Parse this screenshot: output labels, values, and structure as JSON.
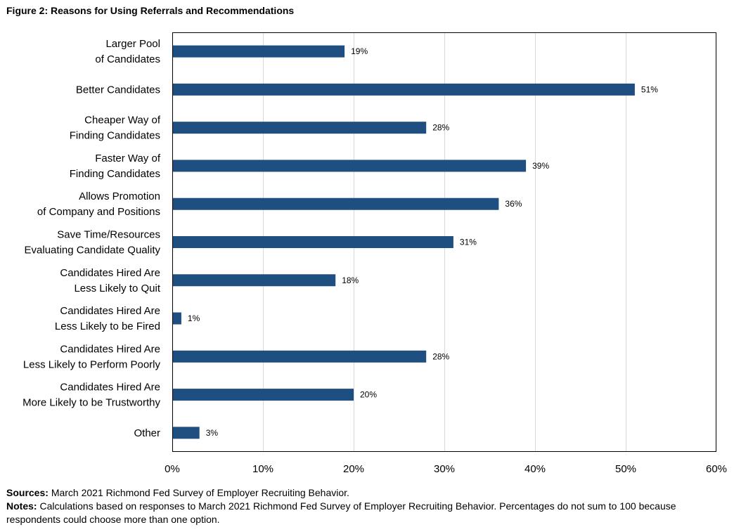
{
  "figure_title": "Figure 2: Reasons for Using Referrals and Recommendations",
  "sources_label": "Sources:",
  "sources_text": "March 2021  Richmond Fed Survey of Employer Recruiting Behavior.",
  "notes_label": "Notes:",
  "notes_text": "Calculations based on responses to March 2021  Richmond Fed Survey of Employer Recruiting Behavior. Percentages do not sum to 100 because respondents could choose more than one option.",
  "colors": {
    "bar": "#1f4e80",
    "grid": "#d9d9d9",
    "frame": "#000000",
    "text": "#000000"
  },
  "chart_data": {
    "type": "bar",
    "orientation": "horizontal",
    "title": "Figure 2: Reasons for Using Referrals and Recommendations",
    "xlabel": "",
    "ylabel": "",
    "categories": [
      [
        "Larger Pool",
        "of Candidates"
      ],
      [
        "Better Candidates"
      ],
      [
        "Cheaper Way of",
        "Finding Candidates"
      ],
      [
        "Faster Way of",
        "Finding Candidates"
      ],
      [
        "Allows Promotion",
        "of Company and Positions"
      ],
      [
        "Save Time/Resources",
        "Evaluating Candidate Quality"
      ],
      [
        "Candidates Hired Are",
        "Less Likely to Quit"
      ],
      [
        "Candidates Hired Are",
        "Less Likely to be Fired"
      ],
      [
        "Candidates Hired Are",
        "Less Likely to Perform Poorly"
      ],
      [
        "Candidates Hired Are",
        "More Likely to be Trustworthy"
      ],
      [
        "Other"
      ]
    ],
    "values": [
      19,
      51,
      28,
      39,
      36,
      31,
      18,
      1,
      28,
      20,
      3
    ],
    "data_labels": [
      "19%",
      "51%",
      "28%",
      "39%",
      "36%",
      "31%",
      "18%",
      "1%",
      "28%",
      "20%",
      "3%"
    ],
    "xlim": [
      0,
      60
    ],
    "xticks": [
      0,
      10,
      20,
      30,
      40,
      50,
      60
    ],
    "xtick_labels": [
      "0%",
      "10%",
      "20%",
      "30%",
      "40%",
      "50%",
      "60%"
    ],
    "grid": "vertical",
    "legend": "none"
  }
}
